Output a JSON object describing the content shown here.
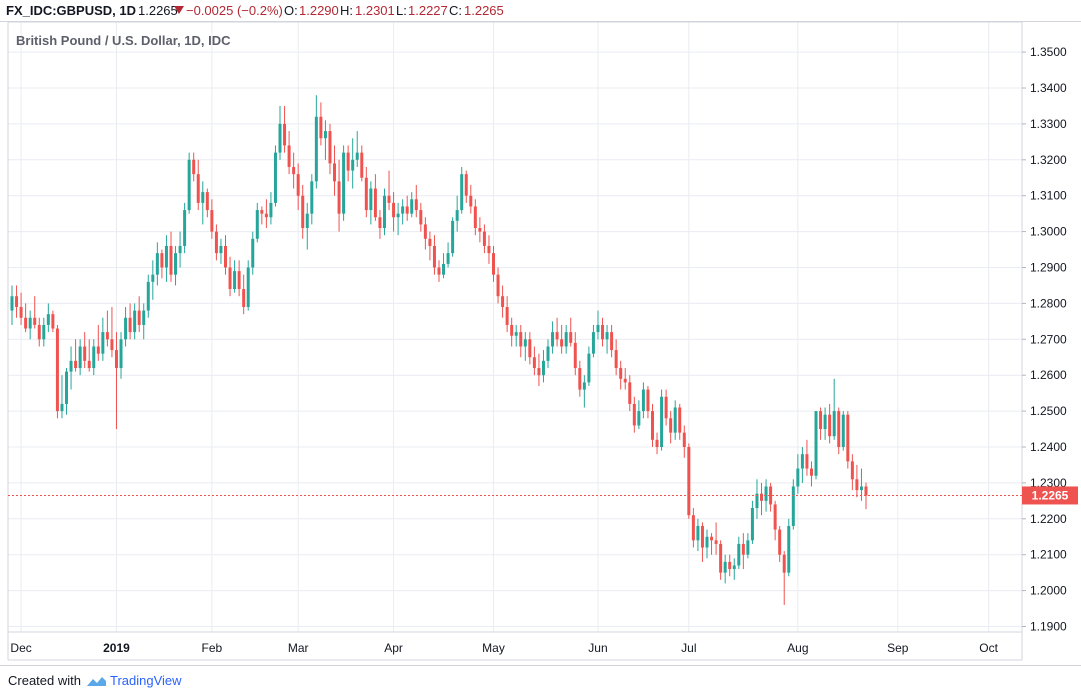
{
  "header": {
    "symbol": "FX_IDC:GBPUSD, 1D",
    "last": "1.2265",
    "change": "−0.0025 (−0.2%)",
    "o_label": "O:",
    "o_value": "1.2290",
    "h_label": "H:",
    "h_value": "1.2301",
    "l_label": "L:",
    "l_value": "1.2227",
    "c_label": "C:",
    "c_value": "1.2265"
  },
  "footer": {
    "created_with": "Created with",
    "brand": "TradingView"
  },
  "colors": {
    "up": "#26a69a",
    "down": "#ef5350",
    "price_line": "#ef5350",
    "text_down": "#b22833",
    "grid": "#e9ecf2"
  },
  "chart_data": {
    "type": "candlestick",
    "title": "British Pound / U.S. Dollar, 1D, IDC",
    "ylim": [
      1.185,
      1.355
    ],
    "y_ticks": [
      "1.1900",
      "1.2000",
      "1.2100",
      "1.2200",
      "1.2300",
      "1.2400",
      "1.2500",
      "1.2600",
      "1.2700",
      "1.2800",
      "1.2900",
      "1.3000",
      "1.3100",
      "1.3200",
      "1.3300",
      "1.3400",
      "1.3500"
    ],
    "x_ticks": [
      {
        "label": "Dec",
        "bar": 2
      },
      {
        "label": "2019",
        "bar": 23
      },
      {
        "label": "Feb",
        "bar": 44
      },
      {
        "label": "Mar",
        "bar": 63
      },
      {
        "label": "Apr",
        "bar": 84
      },
      {
        "label": "May",
        "bar": 106
      },
      {
        "label": "Jun",
        "bar": 129
      },
      {
        "label": "Jul",
        "bar": 149
      },
      {
        "label": "Aug",
        "bar": 173
      },
      {
        "label": "Sep",
        "bar": 195
      },
      {
        "label": "Oct",
        "bar": 215
      }
    ],
    "last_price": "1.2265",
    "last_price_value": 1.2265,
    "ohlc": [
      [
        1.278,
        1.285,
        1.274,
        1.282
      ],
      [
        1.282,
        1.285,
        1.276,
        1.279
      ],
      [
        1.279,
        1.283,
        1.274,
        1.276
      ],
      [
        1.276,
        1.28,
        1.272,
        1.273
      ],
      [
        1.273,
        1.278,
        1.27,
        1.276
      ],
      [
        1.276,
        1.282,
        1.273,
        1.274
      ],
      [
        1.274,
        1.276,
        1.268,
        1.27
      ],
      [
        1.27,
        1.276,
        1.268,
        1.274
      ],
      [
        1.274,
        1.28,
        1.272,
        1.277
      ],
      [
        1.277,
        1.278,
        1.272,
        1.273
      ],
      [
        1.273,
        1.274,
        1.248,
        1.25
      ],
      [
        1.25,
        1.26,
        1.248,
        1.252
      ],
      [
        1.252,
        1.262,
        1.249,
        1.261
      ],
      [
        1.261,
        1.268,
        1.256,
        1.264
      ],
      [
        1.264,
        1.27,
        1.261,
        1.262
      ],
      [
        1.262,
        1.27,
        1.26,
        1.268
      ],
      [
        1.268,
        1.272,
        1.262,
        1.264
      ],
      [
        1.264,
        1.27,
        1.261,
        1.262
      ],
      [
        1.262,
        1.27,
        1.26,
        1.268
      ],
      [
        1.268,
        1.274,
        1.264,
        1.266
      ],
      [
        1.266,
        1.276,
        1.264,
        1.272
      ],
      [
        1.272,
        1.278,
        1.268,
        1.27
      ],
      [
        1.27,
        1.279,
        1.265,
        1.267
      ],
      [
        1.267,
        1.272,
        1.245,
        1.262
      ],
      [
        1.262,
        1.272,
        1.259,
        1.27
      ],
      [
        1.27,
        1.279,
        1.268,
        1.276
      ],
      [
        1.276,
        1.28,
        1.27,
        1.272
      ],
      [
        1.272,
        1.28,
        1.27,
        1.278
      ],
      [
        1.278,
        1.282,
        1.272,
        1.274
      ],
      [
        1.274,
        1.28,
        1.27,
        1.278
      ],
      [
        1.278,
        1.288,
        1.276,
        1.286
      ],
      [
        1.286,
        1.292,
        1.281,
        1.288
      ],
      [
        1.288,
        1.297,
        1.285,
        1.294
      ],
      [
        1.294,
        1.295,
        1.287,
        1.29
      ],
      [
        1.29,
        1.299,
        1.286,
        1.296
      ],
      [
        1.296,
        1.3,
        1.286,
        1.288
      ],
      [
        1.288,
        1.296,
        1.285,
        1.294
      ],
      [
        1.294,
        1.3,
        1.29,
        1.296
      ],
      [
        1.296,
        1.308,
        1.294,
        1.306
      ],
      [
        1.306,
        1.322,
        1.305,
        1.32
      ],
      [
        1.32,
        1.322,
        1.314,
        1.316
      ],
      [
        1.316,
        1.32,
        1.306,
        1.308
      ],
      [
        1.308,
        1.314,
        1.302,
        1.311
      ],
      [
        1.311,
        1.312,
        1.304,
        1.306
      ],
      [
        1.306,
        1.309,
        1.298,
        1.3
      ],
      [
        1.3,
        1.302,
        1.292,
        1.294
      ],
      [
        1.294,
        1.298,
        1.291,
        1.296
      ],
      [
        1.296,
        1.299,
        1.288,
        1.29
      ],
      [
        1.29,
        1.293,
        1.282,
        1.284
      ],
      [
        1.284,
        1.292,
        1.283,
        1.289
      ],
      [
        1.289,
        1.292,
        1.282,
        1.284
      ],
      [
        1.284,
        1.288,
        1.277,
        1.279
      ],
      [
        1.279,
        1.292,
        1.278,
        1.29
      ],
      [
        1.29,
        1.3,
        1.288,
        1.298
      ],
      [
        1.298,
        1.308,
        1.297,
        1.306
      ],
      [
        1.306,
        1.307,
        1.302,
        1.305
      ],
      [
        1.305,
        1.309,
        1.301,
        1.304
      ],
      [
        1.304,
        1.311,
        1.302,
        1.308
      ],
      [
        1.308,
        1.324,
        1.307,
        1.322
      ],
      [
        1.322,
        1.335,
        1.32,
        1.33
      ],
      [
        1.33,
        1.335,
        1.322,
        1.324
      ],
      [
        1.324,
        1.328,
        1.316,
        1.318
      ],
      [
        1.318,
        1.322,
        1.312,
        1.316
      ],
      [
        1.316,
        1.319,
        1.306,
        1.31
      ],
      [
        1.31,
        1.313,
        1.298,
        1.301
      ],
      [
        1.301,
        1.308,
        1.295,
        1.305
      ],
      [
        1.305,
        1.316,
        1.302,
        1.314
      ],
      [
        1.314,
        1.338,
        1.312,
        1.332
      ],
      [
        1.332,
        1.336,
        1.324,
        1.326
      ],
      [
        1.326,
        1.331,
        1.32,
        1.328
      ],
      [
        1.328,
        1.33,
        1.316,
        1.319
      ],
      [
        1.319,
        1.324,
        1.31,
        1.314
      ],
      [
        1.314,
        1.32,
        1.3,
        1.305
      ],
      [
        1.305,
        1.324,
        1.303,
        1.322
      ],
      [
        1.322,
        1.324,
        1.314,
        1.317
      ],
      [
        1.317,
        1.326,
        1.312,
        1.32
      ],
      [
        1.32,
        1.328,
        1.318,
        1.322
      ],
      [
        1.322,
        1.324,
        1.314,
        1.315
      ],
      [
        1.315,
        1.318,
        1.304,
        1.306
      ],
      [
        1.306,
        1.314,
        1.302,
        1.312
      ],
      [
        1.312,
        1.316,
        1.303,
        1.304
      ],
      [
        1.304,
        1.306,
        1.298,
        1.301
      ],
      [
        1.301,
        1.312,
        1.299,
        1.31
      ],
      [
        1.31,
        1.317,
        1.306,
        1.308
      ],
      [
        1.308,
        1.311,
        1.3,
        1.304
      ],
      [
        1.304,
        1.308,
        1.299,
        1.305
      ],
      [
        1.305,
        1.309,
        1.302,
        1.307
      ],
      [
        1.307,
        1.31,
        1.303,
        1.305
      ],
      [
        1.305,
        1.311,
        1.304,
        1.309
      ],
      [
        1.309,
        1.313,
        1.304,
        1.306
      ],
      [
        1.306,
        1.308,
        1.3,
        1.302
      ],
      [
        1.302,
        1.304,
        1.295,
        1.298
      ],
      [
        1.298,
        1.3,
        1.292,
        1.296
      ],
      [
        1.296,
        1.299,
        1.288,
        1.29
      ],
      [
        1.29,
        1.292,
        1.286,
        1.288
      ],
      [
        1.288,
        1.294,
        1.287,
        1.291
      ],
      [
        1.291,
        1.297,
        1.29,
        1.294
      ],
      [
        1.294,
        1.304,
        1.293,
        1.303
      ],
      [
        1.303,
        1.31,
        1.3,
        1.306
      ],
      [
        1.306,
        1.318,
        1.305,
        1.316
      ],
      [
        1.316,
        1.317,
        1.308,
        1.31
      ],
      [
        1.31,
        1.313,
        1.305,
        1.307
      ],
      [
        1.307,
        1.309,
        1.299,
        1.301
      ],
      [
        1.301,
        1.304,
        1.297,
        1.3
      ],
      [
        1.3,
        1.302,
        1.294,
        1.296
      ],
      [
        1.296,
        1.299,
        1.291,
        1.294
      ],
      [
        1.294,
        1.296,
        1.286,
        1.288
      ],
      [
        1.288,
        1.29,
        1.28,
        1.282
      ],
      [
        1.282,
        1.285,
        1.276,
        1.279
      ],
      [
        1.279,
        1.282,
        1.272,
        1.274
      ],
      [
        1.274,
        1.276,
        1.268,
        1.271
      ],
      [
        1.271,
        1.274,
        1.268,
        1.272
      ],
      [
        1.272,
        1.274,
        1.265,
        1.268
      ],
      [
        1.268,
        1.272,
        1.264,
        1.27
      ],
      [
        1.27,
        1.272,
        1.263,
        1.265
      ],
      [
        1.265,
        1.268,
        1.26,
        1.262
      ],
      [
        1.262,
        1.266,
        1.257,
        1.26
      ],
      [
        1.26,
        1.267,
        1.258,
        1.264
      ],
      [
        1.264,
        1.27,
        1.262,
        1.268
      ],
      [
        1.268,
        1.275,
        1.266,
        1.272
      ],
      [
        1.272,
        1.276,
        1.268,
        1.27
      ],
      [
        1.27,
        1.274,
        1.266,
        1.268
      ],
      [
        1.268,
        1.274,
        1.266,
        1.272
      ],
      [
        1.272,
        1.276,
        1.268,
        1.269
      ],
      [
        1.269,
        1.272,
        1.26,
        1.262
      ],
      [
        1.262,
        1.264,
        1.254,
        1.256
      ],
      [
        1.256,
        1.26,
        1.251,
        1.258
      ],
      [
        1.258,
        1.268,
        1.257,
        1.266
      ],
      [
        1.266,
        1.274,
        1.265,
        1.272
      ],
      [
        1.272,
        1.278,
        1.27,
        1.274
      ],
      [
        1.274,
        1.276,
        1.268,
        1.27
      ],
      [
        1.27,
        1.274,
        1.266,
        1.272
      ],
      [
        1.272,
        1.274,
        1.265,
        1.267
      ],
      [
        1.267,
        1.27,
        1.26,
        1.262
      ],
      [
        1.262,
        1.264,
        1.256,
        1.259
      ],
      [
        1.259,
        1.262,
        1.256,
        1.258
      ],
      [
        1.258,
        1.26,
        1.25,
        1.252
      ],
      [
        1.252,
        1.254,
        1.244,
        1.246
      ],
      [
        1.246,
        1.253,
        1.245,
        1.25
      ],
      [
        1.25,
        1.258,
        1.248,
        1.256
      ],
      [
        1.256,
        1.257,
        1.248,
        1.25
      ],
      [
        1.25,
        1.252,
        1.24,
        1.242
      ],
      [
        1.242,
        1.244,
        1.238,
        1.24
      ],
      [
        1.24,
        1.256,
        1.239,
        1.254
      ],
      [
        1.254,
        1.256,
        1.246,
        1.248
      ],
      [
        1.248,
        1.25,
        1.241,
        1.244
      ],
      [
        1.244,
        1.253,
        1.242,
        1.251
      ],
      [
        1.251,
        1.252,
        1.242,
        1.244
      ],
      [
        1.244,
        1.246,
        1.237,
        1.24
      ],
      [
        1.24,
        1.241,
        1.22,
        1.221
      ],
      [
        1.221,
        1.223,
        1.212,
        1.214
      ],
      [
        1.214,
        1.22,
        1.211,
        1.218
      ],
      [
        1.218,
        1.219,
        1.208,
        1.212
      ],
      [
        1.212,
        1.217,
        1.209,
        1.215
      ],
      [
        1.215,
        1.216,
        1.21,
        1.214
      ],
      [
        1.214,
        1.219,
        1.21,
        1.213
      ],
      [
        1.213,
        1.214,
        1.203,
        1.205
      ],
      [
        1.205,
        1.21,
        1.202,
        1.208
      ],
      [
        1.208,
        1.21,
        1.204,
        1.206
      ],
      [
        1.206,
        1.209,
        1.203,
        1.207
      ],
      [
        1.207,
        1.215,
        1.206,
        1.213
      ],
      [
        1.213,
        1.216,
        1.206,
        1.21
      ],
      [
        1.21,
        1.216,
        1.209,
        1.214
      ],
      [
        1.214,
        1.225,
        1.213,
        1.223
      ],
      [
        1.223,
        1.231,
        1.22,
        1.227
      ],
      [
        1.227,
        1.23,
        1.221,
        1.225
      ],
      [
        1.225,
        1.231,
        1.222,
        1.229
      ],
      [
        1.229,
        1.23,
        1.222,
        1.224
      ],
      [
        1.224,
        1.225,
        1.214,
        1.217
      ],
      [
        1.217,
        1.218,
        1.208,
        1.21
      ],
      [
        1.21,
        1.211,
        1.196,
        1.205
      ],
      [
        1.205,
        1.22,
        1.204,
        1.218
      ],
      [
        1.218,
        1.231,
        1.217,
        1.229
      ],
      [
        1.229,
        1.238,
        1.227,
        1.234
      ],
      [
        1.234,
        1.24,
        1.23,
        1.238
      ],
      [
        1.238,
        1.242,
        1.232,
        1.234
      ],
      [
        1.234,
        1.236,
        1.229,
        1.232
      ],
      [
        1.232,
        1.25,
        1.231,
        1.25
      ],
      [
        1.25,
        1.251,
        1.242,
        1.245
      ],
      [
        1.245,
        1.251,
        1.242,
        1.249
      ],
      [
        1.249,
        1.252,
        1.241,
        1.243
      ],
      [
        1.243,
        1.259,
        1.242,
        1.25
      ],
      [
        1.25,
        1.251,
        1.238,
        1.24
      ],
      [
        1.24,
        1.25,
        1.239,
        1.249
      ],
      [
        1.249,
        1.25,
        1.234,
        1.236
      ],
      [
        1.236,
        1.238,
        1.228,
        1.231
      ],
      [
        1.231,
        1.235,
        1.226,
        1.228
      ],
      [
        1.228,
        1.234,
        1.225,
        1.229
      ],
      [
        1.229,
        1.2301,
        1.2227,
        1.2265
      ]
    ]
  }
}
